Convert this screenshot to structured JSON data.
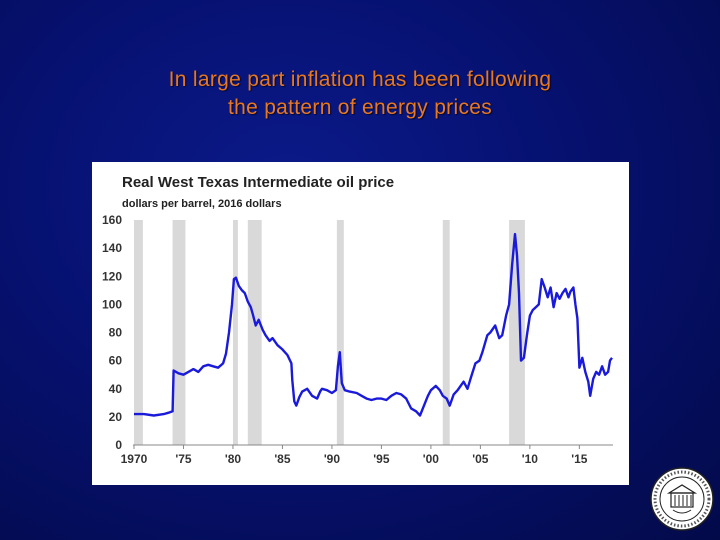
{
  "slide": {
    "title_line1": "In large part inflation has been following",
    "title_line2": "the pattern of energy prices",
    "title_color": "#e87722",
    "background_color": "#061170"
  },
  "chart_data": {
    "type": "line",
    "title": "Real West Texas Intermediate oil price",
    "ylabel": "dollars per barrel, 2016 dollars",
    "xlabel": "",
    "ylim": [
      0,
      160
    ],
    "yticks": [
      0,
      20,
      40,
      60,
      80,
      100,
      120,
      140,
      160
    ],
    "xlim": [
      1969.9,
      2018.4
    ],
    "xticks": [
      {
        "value": 1970,
        "label": "1970"
      },
      {
        "value": 1975,
        "label": "'75"
      },
      {
        "value": 1980,
        "label": "'80"
      },
      {
        "value": 1985,
        "label": "'85"
      },
      {
        "value": 1990,
        "label": "'90"
      },
      {
        "value": 1995,
        "label": "'95"
      },
      {
        "value": 2000,
        "label": "'00"
      },
      {
        "value": 2005,
        "label": "'05"
      },
      {
        "value": 2010,
        "label": "'10"
      },
      {
        "value": 2015,
        "label": "'15"
      }
    ],
    "recessions": [
      [
        1970.0,
        1970.9
      ],
      [
        1973.9,
        1975.2
      ],
      [
        1980.0,
        1980.5
      ],
      [
        1981.5,
        1982.9
      ],
      [
        1990.5,
        1991.2
      ],
      [
        2001.2,
        2001.9
      ],
      [
        2007.9,
        2009.5
      ]
    ],
    "line_color": "#1a1adb",
    "recession_color": "#d9d9d9",
    "grid": false,
    "series": [
      {
        "x": [
          1970.0,
          1971.0,
          1972.0,
          1973.0,
          1973.5,
          1973.9,
          1974.0,
          1974.5,
          1975.0,
          1975.5,
          1976.0,
          1976.5,
          1977.0,
          1977.5,
          1978.0,
          1978.5,
          1979.0,
          1979.3,
          1979.6,
          1979.9,
          1980.1,
          1980.3,
          1980.6,
          1980.9,
          1981.2,
          1981.5,
          1981.8,
          1982.0,
          1982.3,
          1982.6,
          1983.0,
          1983.3,
          1983.7,
          1984.0,
          1984.5,
          1985.0,
          1985.5,
          1985.9,
          1986.0,
          1986.2,
          1986.4,
          1986.7,
          1987.0,
          1987.5,
          1988.0,
          1988.5,
          1988.8,
          1989.0,
          1989.5,
          1990.0,
          1990.4,
          1990.6,
          1990.8,
          1991.0,
          1991.3,
          1991.8,
          1992.5,
          1993.0,
          1993.5,
          1994.0,
          1994.5,
          1995.0,
          1995.5,
          1996.0,
          1996.5,
          1997.0,
          1997.5,
          1998.0,
          1998.5,
          1998.9,
          1999.3,
          1999.7,
          2000.0,
          2000.5,
          2000.9,
          2001.2,
          2001.6,
          2001.9,
          2002.3,
          2002.7,
          2003.0,
          2003.3,
          2003.7,
          2004.0,
          2004.5,
          2004.9,
          2005.2,
          2005.7,
          2006.0,
          2006.5,
          2006.9,
          2007.2,
          2007.6,
          2007.9,
          2008.2,
          2008.5,
          2008.7,
          2008.9,
          2009.1,
          2009.4,
          2009.7,
          2010.0,
          2010.3,
          2010.6,
          2010.9,
          2011.2,
          2011.5,
          2011.8,
          2012.1,
          2012.4,
          2012.7,
          2013.0,
          2013.3,
          2013.6,
          2013.9,
          2014.1,
          2014.4,
          2014.6,
          2014.8,
          2015.0,
          2015.3,
          2015.6,
          2015.9,
          2016.1,
          2016.4,
          2016.7,
          2017.0,
          2017.3,
          2017.6,
          2017.9,
          2018.1,
          2018.3
        ],
        "y": [
          22,
          22,
          21,
          22,
          23,
          24,
          53,
          51,
          50,
          52,
          54,
          52,
          56,
          57,
          56,
          55,
          58,
          65,
          80,
          100,
          118,
          119,
          113,
          110,
          108,
          102,
          98,
          93,
          85,
          89,
          82,
          78,
          74,
          76,
          71,
          68,
          64,
          58,
          46,
          31,
          28,
          34,
          38,
          40,
          35,
          33,
          38,
          40,
          39,
          37,
          39,
          56,
          66,
          44,
          39,
          38,
          37,
          35,
          33,
          32,
          33,
          33,
          32,
          35,
          37,
          36,
          33,
          26,
          24,
          21,
          28,
          35,
          39,
          42,
          39,
          35,
          33,
          28,
          36,
          39,
          42,
          45,
          40,
          47,
          58,
          60,
          66,
          78,
          80,
          85,
          76,
          78,
          92,
          100,
          128,
          150,
          135,
          108,
          60,
          62,
          78,
          92,
          96,
          98,
          100,
          118,
          112,
          105,
          112,
          98,
          108,
          104,
          108,
          111,
          105,
          109,
          112,
          100,
          90,
          55,
          62,
          52,
          45,
          35,
          47,
          52,
          50,
          56,
          50,
          52,
          60,
          62
        ]
      }
    ]
  }
}
